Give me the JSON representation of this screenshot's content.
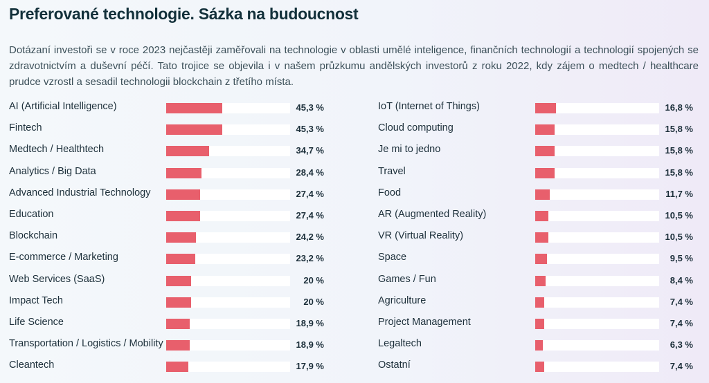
{
  "title": "Preferované technologie. Sázka na budoucnost",
  "intro": "Dotázaní investoři se v roce 2023 nejčastěji zaměřovali na technologie v oblasti umělé inteligence, finančních technologií a technologií spojených se zdravotnictvím a duševní péčí. Tato trojice se objevila i v našem průzkumu andělských investorů z roku 2022, kdy zájem o medtech / healthcare prudce vzrostl a sesadil technologii blockchain z třetího místa.",
  "colors": {
    "bar": "#e85f6c",
    "track": "#ffffff",
    "text": "#1c2f3a"
  },
  "chart_data": [
    {
      "type": "bar",
      "orientation": "horizontal",
      "xlim": [
        0,
        100
      ],
      "categories": [
        "AI (Artificial Intelligence)",
        "Fintech",
        "Medtech / Healthtech",
        "Analytics / Big Data",
        "Advanced Industrial Technology",
        "Education",
        "Blockchain",
        "E-commerce / Marketing",
        "Web Services (SaaS)",
        "Impact Tech",
        "Life Science",
        "Transportation / Logistics / Mobility",
        "Cleantech"
      ],
      "values": [
        45.3,
        45.3,
        34.7,
        28.4,
        27.4,
        27.4,
        24.2,
        23.2,
        20,
        20,
        18.9,
        18.9,
        17.9
      ],
      "value_labels": [
        "45,3 %",
        "45,3 %",
        "34,7 %",
        "28,4 %",
        "27,4 %",
        "27,4 %",
        "24,2 %",
        "23,2 %",
        "20 %",
        "20 %",
        "18,9 %",
        "18,9 %",
        "17,9 %"
      ]
    },
    {
      "type": "bar",
      "orientation": "horizontal",
      "xlim": [
        0,
        100
      ],
      "categories": [
        "IoT (Internet of Things)",
        "Cloud computing",
        "Je mi to jedno",
        "Travel",
        "Food",
        "AR (Augmented Reality)",
        "VR (Virtual Reality)",
        "Space",
        "Games / Fun",
        "Agriculture",
        "Project Management",
        "Legaltech",
        "Ostatní"
      ],
      "values": [
        16.8,
        15.8,
        15.8,
        15.8,
        11.7,
        10.5,
        10.5,
        9.5,
        8.4,
        7.4,
        7.4,
        6.3,
        7.4
      ],
      "value_labels": [
        "16,8 %",
        "15,8 %",
        "15,8 %",
        "15,8 %",
        "11,7 %",
        "10,5 %",
        "10,5 %",
        "9,5 %",
        "8,4 %",
        "7,4 %",
        "7,4 %",
        "6,3 %",
        "7,4 %"
      ]
    }
  ]
}
